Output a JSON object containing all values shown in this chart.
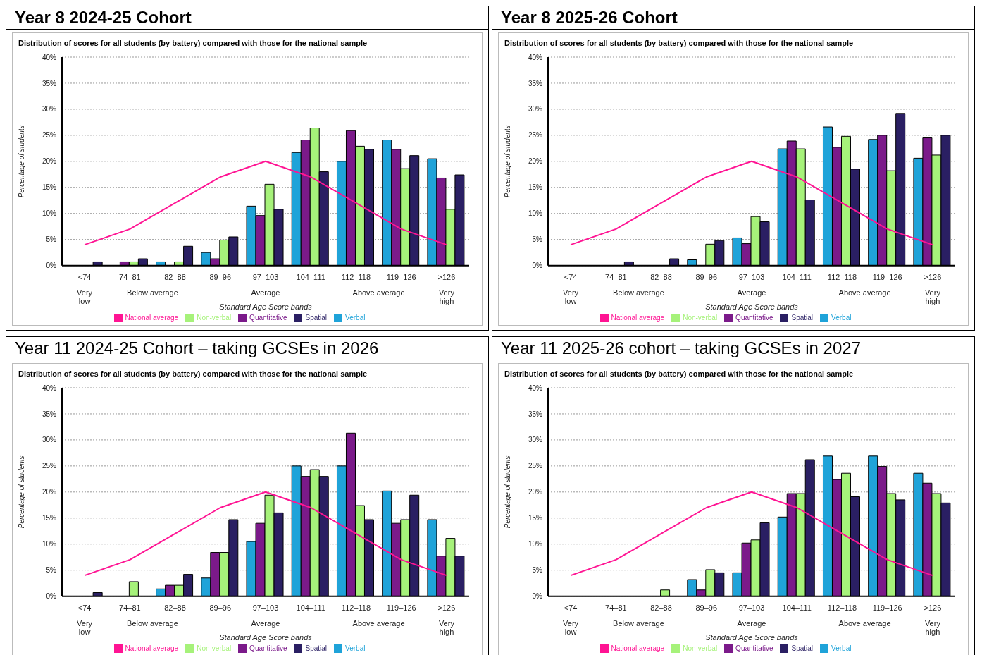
{
  "chart_data": [
    {
      "type": "bar",
      "title": "Year 8 2024-25 Cohort",
      "subtitle": "Distribution of scores for all students (by battery) compared with those for the national sample",
      "xlabel": "Standard Age Score bands",
      "ylabel": "Percentage of students",
      "categories": [
        "<74",
        "74–81",
        "82–88",
        "89–96",
        "97–103",
        "104–111",
        "112–118",
        "119–126",
        ">126"
      ],
      "annotations": [
        "Very low",
        "Below average",
        "Average",
        "Above average",
        "Very high"
      ],
      "ylim": [
        0,
        40
      ],
      "yticks": [
        {
          "value": 0,
          "label": "0%"
        },
        {
          "value": 5,
          "label": "5%"
        },
        {
          "value": 10,
          "label": "10%"
        },
        {
          "value": 15,
          "label": "15%"
        },
        {
          "value": 20,
          "label": "20%"
        },
        {
          "value": 25,
          "label": "25%"
        },
        {
          "value": 30,
          "label": "30%"
        },
        {
          "value": 35,
          "label": "35%"
        },
        {
          "value": 40,
          "label": "40%"
        }
      ],
      "grid": "y",
      "legend": "bottom",
      "marker": "none",
      "series": [
        {
          "name": "Verbal",
          "color": "#1fa3d9",
          "values": [
            null,
            null,
            0.7,
            2.5,
            11.4,
            21.7,
            20,
            24.1,
            20.5
          ]
        },
        {
          "name": "Quantitative",
          "color": "#7b1a8a",
          "values": [
            null,
            0.7,
            null,
            1.3,
            9.6,
            24.1,
            25.9,
            22.3,
            16.8
          ]
        },
        {
          "name": "Non-verbal",
          "color": "#a6f27a",
          "values": [
            null,
            0.7,
            0.7,
            4.9,
            15.6,
            26.4,
            22.9,
            18.6,
            10.8
          ]
        },
        {
          "name": "Spatial",
          "color": "#2a1f63",
          "values": [
            0.7,
            1.3,
            3.7,
            5.5,
            10.8,
            18,
            22.3,
            21.1,
            17.4
          ]
        },
        {
          "name": "National average",
          "type": "line",
          "color": "#ff1493",
          "values": [
            4,
            7,
            12,
            17,
            20,
            17,
            12,
            7,
            4
          ]
        }
      ]
    },
    {
      "type": "bar",
      "title": "Year 8 2025-26 Cohort",
      "subtitle": "Distribution of scores for all students (by battery) compared with those for the national sample",
      "xlabel": "Standard Age Score bands",
      "ylabel": "Percentage of students",
      "categories": [
        "<74",
        "74–81",
        "82–88",
        "89–96",
        "97–103",
        "104–111",
        "112–118",
        "119–126",
        ">126"
      ],
      "annotations": [
        "Very low",
        "Below average",
        "Average",
        "Above average",
        "Very high"
      ],
      "ylim": [
        0,
        40
      ],
      "yticks": [
        {
          "value": 0,
          "label": "0%"
        },
        {
          "value": 5,
          "label": "5%"
        },
        {
          "value": 10,
          "label": "10%"
        },
        {
          "value": 15,
          "label": "15%"
        },
        {
          "value": 20,
          "label": "20%"
        },
        {
          "value": 25,
          "label": "25%"
        },
        {
          "value": 30,
          "label": "30%"
        },
        {
          "value": 35,
          "label": "35%"
        },
        {
          "value": 40,
          "label": "40%"
        }
      ],
      "grid": "y",
      "legend": "bottom",
      "marker": "none",
      "series": [
        {
          "name": "Verbal",
          "color": "#1fa3d9",
          "values": [
            null,
            null,
            null,
            1.1,
            5.3,
            22.4,
            26.6,
            24.2,
            20.6
          ]
        },
        {
          "name": "Quantitative",
          "color": "#7b1a8a",
          "values": [
            null,
            null,
            null,
            null,
            4.2,
            23.9,
            22.7,
            25,
            24.5
          ]
        },
        {
          "name": "Non-verbal",
          "color": "#a6f27a",
          "values": [
            null,
            null,
            null,
            4.1,
            9.4,
            22.4,
            24.8,
            18.2,
            21.2
          ]
        },
        {
          "name": "Spatial",
          "color": "#2a1f63",
          "values": [
            null,
            0.7,
            1.3,
            4.8,
            8.4,
            12.6,
            18.5,
            29.2,
            25
          ]
        },
        {
          "name": "National average",
          "type": "line",
          "color": "#ff1493",
          "values": [
            4,
            7,
            12,
            17,
            20,
            17,
            12,
            7,
            4
          ]
        }
      ]
    },
    {
      "type": "bar",
      "title": "Year 11 2024-25 Cohort – taking GCSEs in 2026",
      "subtitle": "Distribution of scores for all students (by battery) compared with those for the national sample",
      "xlabel": "Standard Age Score bands",
      "ylabel": "Percentage of students",
      "categories": [
        "<74",
        "74–81",
        "82–88",
        "89–96",
        "97–103",
        "104–111",
        "112–118",
        "119–126",
        ">126"
      ],
      "annotations": [
        "Very low",
        "Below average",
        "Average",
        "Above average",
        "Very high"
      ],
      "ylim": [
        0,
        40
      ],
      "yticks": [
        {
          "value": 0,
          "label": "0%"
        },
        {
          "value": 5,
          "label": "5%"
        },
        {
          "value": 10,
          "label": "10%"
        },
        {
          "value": 15,
          "label": "15%"
        },
        {
          "value": 20,
          "label": "20%"
        },
        {
          "value": 25,
          "label": "25%"
        },
        {
          "value": 30,
          "label": "30%"
        },
        {
          "value": 35,
          "label": "35%"
        },
        {
          "value": 40,
          "label": "40%"
        }
      ],
      "grid": "y",
      "legend": "bottom",
      "marker": "none",
      "series": [
        {
          "name": "Verbal",
          "color": "#1fa3d9",
          "values": [
            null,
            null,
            1.4,
            3.5,
            10.5,
            25,
            25,
            20.2,
            14.7
          ]
        },
        {
          "name": "Quantitative",
          "color": "#7b1a8a",
          "values": [
            null,
            null,
            2.1,
            8.4,
            14,
            23,
            31.3,
            14,
            7.7
          ]
        },
        {
          "name": "Non-verbal",
          "color": "#a6f27a",
          "values": [
            null,
            2.8,
            2.1,
            8.4,
            19.4,
            24.3,
            17.4,
            14.7,
            11.1
          ]
        },
        {
          "name": "Spatial",
          "color": "#2a1f63",
          "values": [
            0.7,
            null,
            4.2,
            14.7,
            16,
            23,
            14.7,
            19.4,
            7.7
          ]
        },
        {
          "name": "National average",
          "type": "line",
          "color": "#ff1493",
          "values": [
            4,
            7,
            12,
            17,
            20,
            17,
            12,
            7,
            4
          ]
        }
      ]
    },
    {
      "type": "bar",
      "title": "Year 11 2025-26 cohort – taking GCSEs in 2027",
      "subtitle": "Distribution of scores for all students (by battery) compared with those for the national sample",
      "xlabel": "Standard Age Score bands",
      "ylabel": "Percentage of students",
      "categories": [
        "<74",
        "74–81",
        "82–88",
        "89–96",
        "97–103",
        "104–111",
        "112–118",
        "119–126",
        ">126"
      ],
      "annotations": [
        "Very low",
        "Below average",
        "Average",
        "Above average",
        "Very high"
      ],
      "ylim": [
        0,
        40
      ],
      "yticks": [
        {
          "value": 0,
          "label": "0%"
        },
        {
          "value": 5,
          "label": "5%"
        },
        {
          "value": 10,
          "label": "10%"
        },
        {
          "value": 15,
          "label": "15%"
        },
        {
          "value": 20,
          "label": "20%"
        },
        {
          "value": 25,
          "label": "25%"
        },
        {
          "value": 30,
          "label": "30%"
        },
        {
          "value": 35,
          "label": "35%"
        },
        {
          "value": 40,
          "label": "40%"
        }
      ],
      "grid": "y",
      "legend": "bottom",
      "marker": "none",
      "series": [
        {
          "name": "Verbal",
          "color": "#1fa3d9",
          "values": [
            null,
            null,
            null,
            3.2,
            4.5,
            15.2,
            26.9,
            26.9,
            23.6
          ]
        },
        {
          "name": "Quantitative",
          "color": "#7b1a8a",
          "values": [
            null,
            null,
            null,
            1.2,
            10.2,
            19.7,
            22.4,
            24.9,
            21.7
          ]
        },
        {
          "name": "Non-verbal",
          "color": "#a6f27a",
          "values": [
            null,
            null,
            1.2,
            5.1,
            10.8,
            19.7,
            23.6,
            19.7,
            19.7
          ]
        },
        {
          "name": "Spatial",
          "color": "#2a1f63",
          "values": [
            null,
            null,
            null,
            4.5,
            14.1,
            26.2,
            19.1,
            18.5,
            17.9
          ]
        },
        {
          "name": "National average",
          "type": "line",
          "color": "#ff1493",
          "values": [
            4,
            7,
            12,
            17,
            20,
            17,
            12,
            7,
            4
          ]
        }
      ]
    }
  ]
}
